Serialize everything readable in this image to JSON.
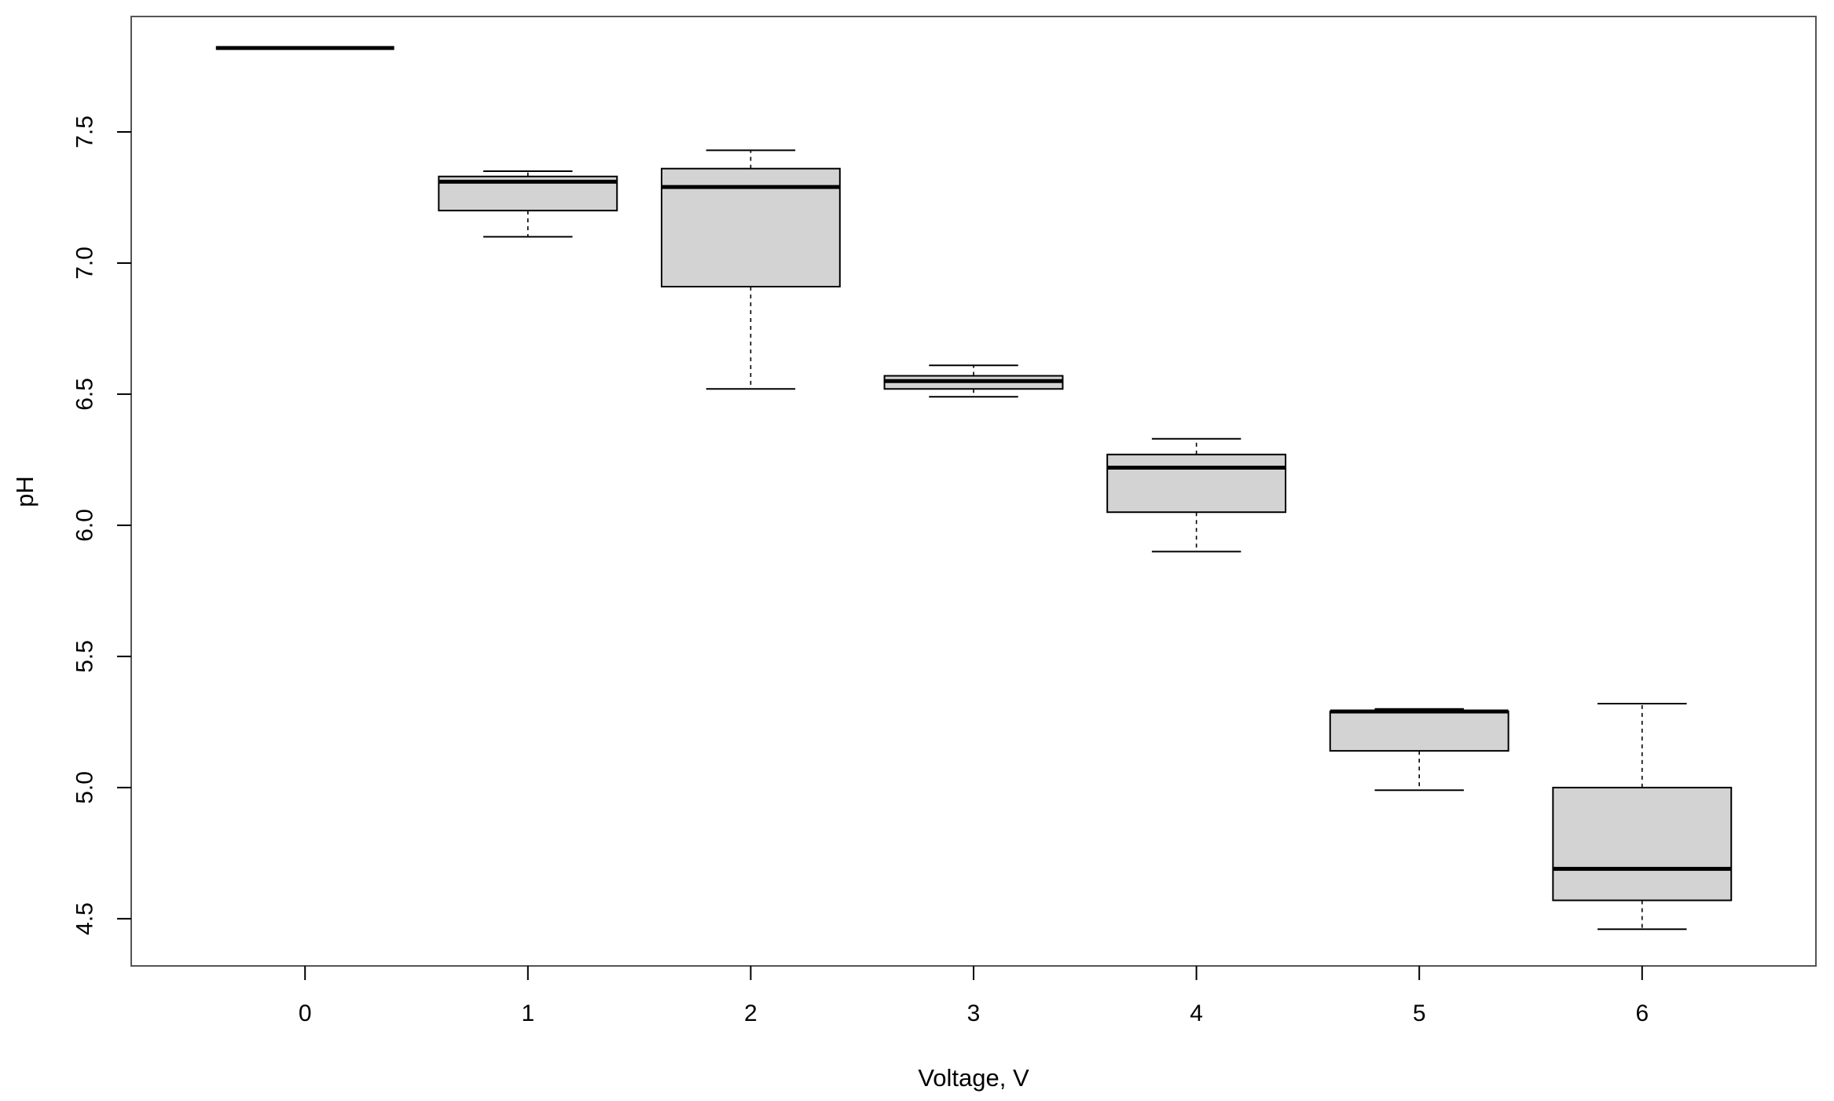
{
  "chart_data": {
    "type": "boxplot",
    "title": "",
    "xlabel": "Voltage, V",
    "ylabel": "pH",
    "categories": [
      "0",
      "1",
      "2",
      "3",
      "4",
      "5",
      "6"
    ],
    "ylim": [
      4.32,
      7.94
    ],
    "yticks": [
      "4.5",
      "5.0",
      "5.5",
      "6.0",
      "6.5",
      "7.0",
      "7.5"
    ],
    "grid": false,
    "legend": "none",
    "box_fill": "#d3d3d3",
    "line_color": "#000000",
    "boxes": [
      {
        "category": "0",
        "min": 7.82,
        "q1": 7.82,
        "median": 7.82,
        "q3": 7.82,
        "max": 7.82
      },
      {
        "category": "1",
        "min": 7.1,
        "q1": 7.2,
        "median": 7.31,
        "q3": 7.33,
        "max": 7.35
      },
      {
        "category": "2",
        "min": 6.52,
        "q1": 6.91,
        "median": 7.29,
        "q3": 7.36,
        "max": 7.43
      },
      {
        "category": "3",
        "min": 6.49,
        "q1": 6.52,
        "median": 6.55,
        "q3": 6.57,
        "max": 6.61
      },
      {
        "category": "4",
        "min": 5.9,
        "q1": 6.05,
        "median": 6.22,
        "q3": 6.27,
        "max": 6.33
      },
      {
        "category": "5",
        "min": 4.99,
        "q1": 5.14,
        "median": 5.29,
        "q3": 5.29,
        "max": 5.3
      },
      {
        "category": "6",
        "min": 4.46,
        "q1": 4.57,
        "median": 4.69,
        "q3": 5.0,
        "max": 5.32
      }
    ]
  }
}
